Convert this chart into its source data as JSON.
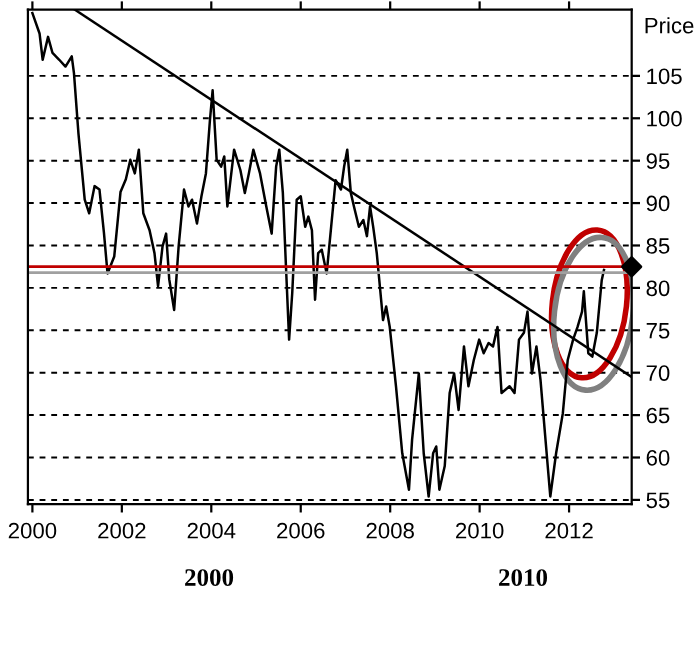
{
  "chart_data": {
    "type": "line",
    "ylabel": "Price",
    "xlim": [
      1999.9,
      2013.4
    ],
    "xticks": [
      2000,
      2002,
      2004,
      2006,
      2008,
      2010,
      2012
    ],
    "ylim": [
      54.5,
      112.8
    ],
    "yticks": [
      55,
      60,
      65,
      70,
      75,
      80,
      85,
      90,
      95,
      100,
      105
    ],
    "grid": "y",
    "annotations": [
      "2000",
      "2010"
    ],
    "ref_lines": [
      {
        "axis": "y",
        "value": 82.5,
        "color": "#c00000"
      },
      {
        "axis": "y",
        "value": 81.8,
        "color": "#a0a0a0"
      }
    ],
    "series": [
      {
        "color": "#000000",
        "x": [
          2000.0,
          2000.16,
          2000.23,
          2000.35,
          2000.45,
          2000.6,
          2000.74,
          2000.88,
          2000.93,
          2001.03,
          2001.17,
          2001.27,
          2001.39,
          2001.5,
          2001.6,
          2001.68,
          2001.83,
          2001.97,
          2002.09,
          2002.19,
          2002.29,
          2002.38,
          2002.48,
          2002.62,
          2002.73,
          2002.81,
          2002.91,
          2002.99,
          2003.06,
          2003.17,
          2003.27,
          2003.39,
          2003.49,
          2003.57,
          2003.68,
          2003.78,
          2003.88,
          2003.97,
          2004.03,
          2004.12,
          2004.22,
          2004.29,
          2004.36,
          2004.51,
          2004.65,
          2004.75,
          2004.84,
          2004.94,
          2005.09,
          2005.23,
          2005.35,
          2005.45,
          2005.52,
          2005.6,
          2005.67,
          2005.74,
          2005.81,
          2005.91,
          2006.0,
          2006.1,
          2006.17,
          2006.25,
          2006.32,
          2006.39,
          2006.47,
          2006.58,
          2006.68,
          2006.78,
          2006.9,
          2006.97,
          2007.04,
          2007.12,
          2007.19,
          2007.3,
          2007.4,
          2007.48,
          2007.55,
          2007.62,
          2007.7,
          2007.84,
          2007.91,
          2007.99,
          2008.13,
          2008.27,
          2008.42,
          2008.49,
          2008.64,
          2008.75,
          2008.86,
          2008.96,
          2009.03,
          2009.1,
          2009.22,
          2009.33,
          2009.43,
          2009.53,
          2009.65,
          2009.75,
          2009.87,
          2009.99,
          2010.09,
          2010.2,
          2010.3,
          2010.4,
          2010.49,
          2010.67,
          2010.78,
          2010.88,
          2010.99,
          2011.07,
          2011.17,
          2011.27,
          2011.36,
          2011.46,
          2011.58,
          2011.71,
          2011.86,
          2011.97,
          2012.09,
          2012.19,
          2012.29,
          2012.33,
          2012.43,
          2012.52,
          2012.62,
          2012.73,
          2012.78
        ],
        "values": [
          112.4,
          110,
          106.9,
          109.6,
          107.7,
          106.9,
          106.1,
          107.3,
          105.3,
          98.2,
          90.4,
          88.8,
          92,
          91.6,
          86.5,
          81.7,
          83.7,
          91.3,
          92.8,
          95.1,
          93.5,
          96.3,
          88.8,
          86.8,
          84.1,
          80.2,
          84.9,
          86.4,
          81,
          77.4,
          84.9,
          91.6,
          89.6,
          90.4,
          87.6,
          90.8,
          93.5,
          99.8,
          103.3,
          95.1,
          94.3,
          95.5,
          89.6,
          96.3,
          93.9,
          91.2,
          93.5,
          96.3,
          93.5,
          89.6,
          86.4,
          94.3,
          96.3,
          91.2,
          82.5,
          73.9,
          79.4,
          90.4,
          90.8,
          87.2,
          88.4,
          86.8,
          78.6,
          84.1,
          84.5,
          81.7,
          87.2,
          92.7,
          91.6,
          94.3,
          96.3,
          91.2,
          89.6,
          87.2,
          88,
          86.1,
          89.6,
          87.2,
          84.1,
          76.2,
          77.8,
          75.4,
          68.4,
          60.5,
          56.2,
          62.1,
          69.9,
          60.5,
          55.4,
          60.5,
          61.3,
          56.2,
          59,
          67.6,
          69.9,
          65.6,
          73.1,
          68.4,
          71.5,
          73.9,
          72.3,
          73.5,
          73.1,
          75.4,
          67.6,
          68.4,
          67.6,
          73.9,
          74.7,
          77.2,
          69.9,
          73.1,
          69.2,
          62.9,
          55.4,
          60.5,
          65.2,
          71.5,
          73.9,
          75.4,
          77.2,
          79.6,
          72.3,
          71.9,
          74.7,
          80.9,
          82.1
        ]
      },
      {
        "type": "line",
        "color": "#000000",
        "x": [
          2000.95,
          2013.4
        ],
        "values": [
          112.8,
          69.5
        ]
      },
      {
        "type": "scatter",
        "color": "#000000",
        "x": [
          2013.4
        ],
        "values": [
          82.5
        ]
      }
    ]
  }
}
